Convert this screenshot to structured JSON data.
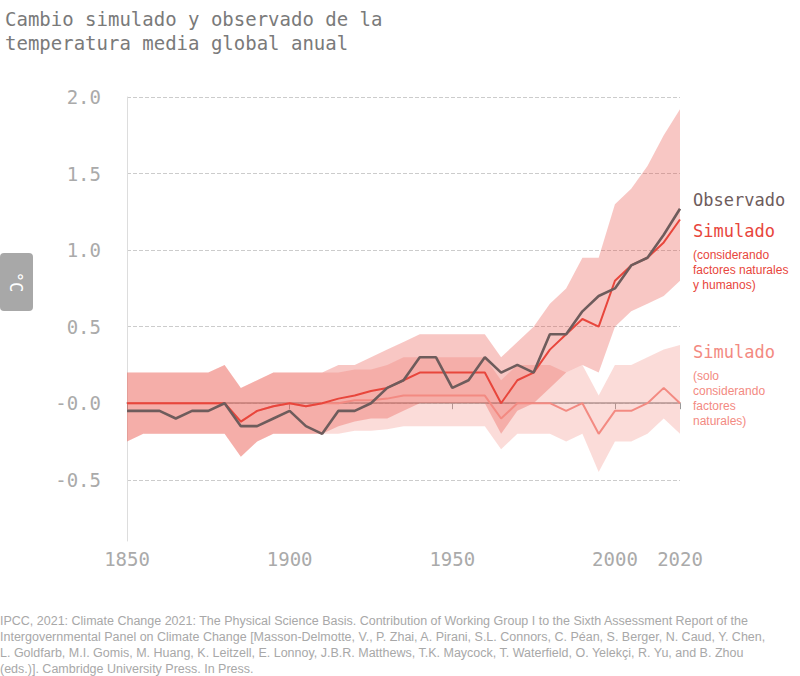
{
  "chart_data": {
    "type": "line",
    "title": [
      "Cambio simulado y observado de la",
      "temperatura media global anual"
    ],
    "y_label": "°C",
    "x": [
      1850,
      1855,
      1860,
      1865,
      1870,
      1875,
      1880,
      1885,
      1890,
      1895,
      1900,
      1905,
      1910,
      1915,
      1920,
      1925,
      1930,
      1935,
      1940,
      1945,
      1950,
      1955,
      1960,
      1965,
      1970,
      1975,
      1980,
      1985,
      1990,
      1995,
      2000,
      2005,
      2010,
      2015,
      2020
    ],
    "xlim": [
      1850,
      2020
    ],
    "xticks": [
      1850,
      1900,
      1950,
      2000,
      2020
    ],
    "ylim": [
      -0.9,
      2.0
    ],
    "yticks": [
      {
        "value": 2.0,
        "label": "2.0"
      },
      {
        "value": 1.5,
        "label": "1.5"
      },
      {
        "value": 1.0,
        "label": "1.0"
      },
      {
        "value": 0.5,
        "label": "0.5"
      },
      {
        "value": 0,
        "label": "-0.0"
      },
      {
        "value": -0.5,
        "label": "-0.5"
      }
    ],
    "grid": true,
    "series": [
      {
        "name": "Simulado",
        "note": [
          "(solo",
          "considerando",
          "factores",
          "naturales)"
        ],
        "color": "#f38a82",
        "values": [
          0,
          0,
          0,
          0,
          0,
          0,
          0,
          -0.12,
          -0.05,
          -0.02,
          0,
          -0.02,
          0,
          0,
          0.02,
          0.02,
          0.03,
          0.05,
          0.05,
          0.05,
          0.05,
          0.05,
          0.05,
          -0.1,
          0,
          0,
          0,
          -0.05,
          0,
          -0.2,
          -0.05,
          -0.05,
          0,
          0.1,
          0
        ],
        "low": [
          -0.25,
          -0.2,
          -0.2,
          -0.2,
          -0.2,
          -0.2,
          -0.2,
          -0.35,
          -0.25,
          -0.2,
          -0.2,
          -0.2,
          -0.2,
          -0.2,
          -0.18,
          -0.18,
          -0.17,
          -0.15,
          -0.15,
          -0.15,
          -0.15,
          -0.15,
          -0.15,
          -0.3,
          -0.2,
          -0.2,
          -0.2,
          -0.25,
          -0.2,
          -0.45,
          -0.25,
          -0.25,
          -0.2,
          -0.1,
          -0.2
        ],
        "high": [
          0.2,
          0.2,
          0.2,
          0.2,
          0.2,
          0.2,
          0.25,
          0.1,
          0.15,
          0.2,
          0.2,
          0.2,
          0.2,
          0.2,
          0.22,
          0.22,
          0.25,
          0.3,
          0.3,
          0.3,
          0.3,
          0.3,
          0.3,
          0.15,
          0.25,
          0.25,
          0.25,
          0.2,
          0.25,
          0.05,
          0.25,
          0.25,
          0.3,
          0.35,
          0.38
        ]
      },
      {
        "name": "Simulado",
        "note": [
          "(considerando",
          "factores naturales",
          "y humanos)"
        ],
        "color": "#e8463c",
        "values": [
          0,
          0,
          0,
          0,
          0,
          0,
          0,
          -0.12,
          -0.05,
          -0.02,
          0,
          -0.02,
          0,
          0.03,
          0.05,
          0.08,
          0.1,
          0.15,
          0.2,
          0.2,
          0.2,
          0.2,
          0.2,
          0,
          0.15,
          0.2,
          0.35,
          0.45,
          0.55,
          0.5,
          0.8,
          0.9,
          0.95,
          1.05,
          1.2
        ],
        "low": [
          -0.25,
          -0.2,
          -0.2,
          -0.2,
          -0.2,
          -0.2,
          -0.2,
          -0.35,
          -0.25,
          -0.2,
          -0.2,
          -0.2,
          -0.2,
          -0.15,
          -0.12,
          -0.1,
          -0.1,
          -0.05,
          0,
          0,
          0,
          0,
          0,
          -0.2,
          -0.05,
          0,
          0.1,
          0.2,
          0.25,
          0.2,
          0.5,
          0.6,
          0.65,
          0.7,
          0.8
        ],
        "high": [
          0.2,
          0.2,
          0.2,
          0.2,
          0.2,
          0.2,
          0.25,
          0.1,
          0.15,
          0.2,
          0.2,
          0.2,
          0.2,
          0.25,
          0.25,
          0.3,
          0.35,
          0.4,
          0.45,
          0.45,
          0.45,
          0.45,
          0.45,
          0.3,
          0.4,
          0.5,
          0.65,
          0.75,
          0.95,
          0.95,
          1.3,
          1.4,
          1.55,
          1.75,
          1.92
        ]
      },
      {
        "name": "Observado",
        "color": "#6e5c5c",
        "values": [
          -0.05,
          -0.05,
          -0.05,
          -0.1,
          -0.05,
          -0.05,
          0,
          -0.15,
          -0.15,
          -0.1,
          -0.05,
          -0.15,
          -0.2,
          -0.05,
          -0.05,
          0,
          0.1,
          0.15,
          0.3,
          0.3,
          0.1,
          0.15,
          0.3,
          0.2,
          0.25,
          0.2,
          0.45,
          0.45,
          0.6,
          0.7,
          0.75,
          0.9,
          0.95,
          1.1,
          1.27
        ]
      }
    ],
    "source": [
      "IPCC, 2021: Climate Change 2021: The Physical Science Basis. Contribution of Working Group I to the Sixth Assessment Report of the",
      "Intergovernmental Panel on Climate Change [Masson-Delmotte, V., P. Zhai, A. Pirani, S.L. Connors, C. Péan, S. Berger, N. Caud, Y. Chen,",
      "L. Goldfarb, M.I. Gomis, M. Huang, K. Leitzell, E. Lonnoy, J.B.R. Matthews, T.K. Maycock, T. Waterfield, O. Yelekçi, R. Yu, and B. Zhou",
      "(eds.)]. Cambridge University Press. In Press."
    ]
  }
}
